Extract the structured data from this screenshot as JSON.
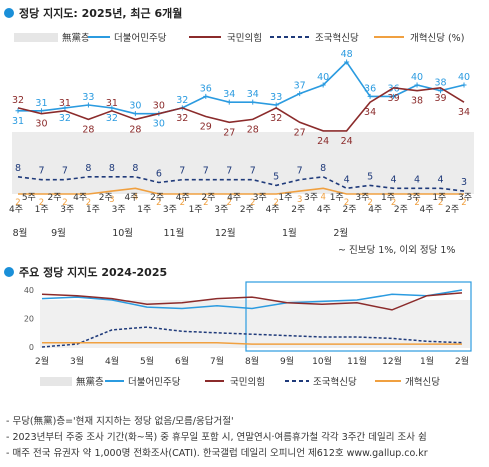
{
  "colors": {
    "undecided": "#e6e6e6",
    "democratic": "#2b9be0",
    "ppp": "#8b2b2b",
    "rebuild": "#1f3a7a",
    "reform": "#f0a040",
    "heading_dot": "#1a8fd8"
  },
  "top": {
    "title": "정당 지지도: 2025년, 최근 6개월",
    "legend": [
      "無黨층",
      "더불어민주당",
      "국민의힘",
      "조국혁신당",
      "개혁신당 (%)"
    ]
  },
  "bottom": {
    "title": "주요 정당 지지도 2024-2025",
    "legend": [
      "無黨층",
      "더불어민주당",
      "국민의힘",
      "조국혁신당",
      "개혁신당"
    ],
    "months": [
      "2월",
      "3월",
      "4월",
      "5월",
      "6월",
      "7월",
      "8월",
      "9월",
      "10월",
      "11월",
      "12월",
      "1월",
      "2월"
    ]
  },
  "note_other": "~ 진보당 1%, 이외 정당 1%",
  "footnotes": [
    "- 무당(無黨)층='현재 지지하는 정당 없음/모름/응답거절'",
    "- 2023년부터 주중 조사 기간(화~목) 중 휴무일 포함 시, 연말연시·여름휴가철 각각 3주간 데일리 조사 쉼",
    "- 매주 전국 유권자 약 1,000명 전화조사(CATI). 한국갤럽 데일리 오피니언 제612호 www.gallup.co.kr"
  ],
  "chart_data": [
    {
      "type": "line",
      "title": "정당 지지도: 2025년, 최근 6개월",
      "x_week_labels": [
        "4주",
        "5주",
        "1주",
        "2주",
        "3주",
        "4주",
        "1주",
        "2주",
        "3주",
        "4주",
        "1주",
        "2주",
        "3주",
        "4주",
        "1주",
        "2주",
        "3주",
        "4주",
        "2주",
        "3주",
        "4주",
        "1주",
        "2주",
        "3주",
        "4주",
        "1주",
        "2주",
        "3주",
        "4주",
        "1주",
        "2주",
        "3주",
        "4주",
        "1주",
        "2주",
        "3주"
      ],
      "x_month_labels": [
        {
          "label": "8월",
          "at_index": 0
        },
        {
          "label": "9월",
          "at_index": 3
        },
        {
          "label": "10월",
          "at_index": 8
        },
        {
          "label": "11월",
          "at_index": 12
        },
        {
          "label": "12월",
          "at_index": 16
        },
        {
          "label": "1월",
          "at_index": 21
        },
        {
          "label": "2월",
          "at_index": 25
        }
      ],
      "series": [
        {
          "name": "더불어민주당",
          "values": [
            31,
            31,
            32,
            33,
            32,
            30,
            30,
            32,
            36,
            34,
            34,
            33,
            37,
            40,
            48,
            36,
            36,
            40,
            38,
            40
          ]
        },
        {
          "name": "국민의힘",
          "values": [
            32,
            30,
            31,
            28,
            31,
            28,
            30,
            32,
            29,
            27,
            28,
            32,
            27,
            24,
            24,
            34,
            39,
            38,
            39,
            34
          ]
        },
        {
          "name": "조국혁신당",
          "values": [
            8,
            7,
            7,
            8,
            8,
            8,
            6,
            7,
            7,
            7,
            7,
            5,
            7,
            8,
            4,
            5,
            4,
            4,
            4,
            3
          ]
        },
        {
          "name": "개혁신당",
          "values": [
            2,
            2,
            2,
            2,
            3,
            4,
            2,
            2,
            2,
            2,
            2,
            2,
            3,
            4,
            2,
            2,
            2,
            2,
            2,
            2
          ]
        }
      ]
    },
    {
      "type": "line",
      "title": "주요 정당 지지도 2024-2025",
      "categories": [
        "2월",
        "3월",
        "4월",
        "5월",
        "6월",
        "7월",
        "8월",
        "9월",
        "10월",
        "11월",
        "12월",
        "1월",
        "2월"
      ],
      "series": [
        {
          "name": "더불어민주당",
          "values": [
            34,
            35,
            33,
            28,
            27,
            29,
            27,
            31,
            32,
            33,
            37,
            36,
            40
          ]
        },
        {
          "name": "국민의힘",
          "values": [
            37,
            36,
            34,
            30,
            31,
            34,
            35,
            31,
            30,
            31,
            26,
            36,
            38
          ]
        },
        {
          "name": "조국혁신당",
          "values": [
            0,
            2,
            12,
            14,
            11,
            10,
            9,
            8,
            7,
            7,
            6,
            4,
            3
          ]
        },
        {
          "name": "개혁신당",
          "values": [
            3,
            3,
            3,
            3,
            3,
            3,
            2,
            2,
            2,
            2,
            2,
            2,
            2
          ]
        }
      ]
    }
  ]
}
